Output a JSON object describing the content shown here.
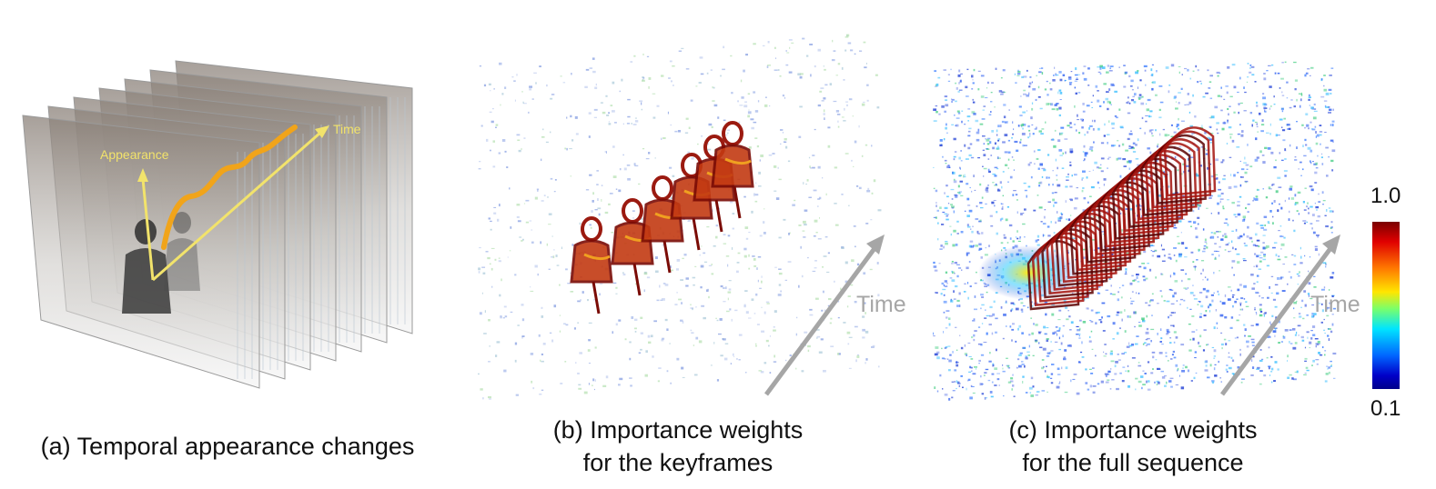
{
  "panel_a": {
    "caption": "(a) Temporal appearance changes",
    "label_appearance": "Appearance",
    "label_time": "Time"
  },
  "panel_b": {
    "caption_line1": "(b) Importance weights",
    "caption_line2": "for the keyframes",
    "time_label": "Time"
  },
  "panel_c": {
    "caption_line1": "(c) Importance weights",
    "caption_line2": "for the full sequence",
    "time_label": "Time"
  },
  "colorbar": {
    "max": "1.0",
    "min": "0.1"
  },
  "colors": {
    "arrow_yellow": "#f2e36b",
    "curve_orange": "#f1a41a",
    "time_gray": "#a6a6a6",
    "high_red": "#8b0000",
    "low_blue": "#1f3fd6"
  }
}
